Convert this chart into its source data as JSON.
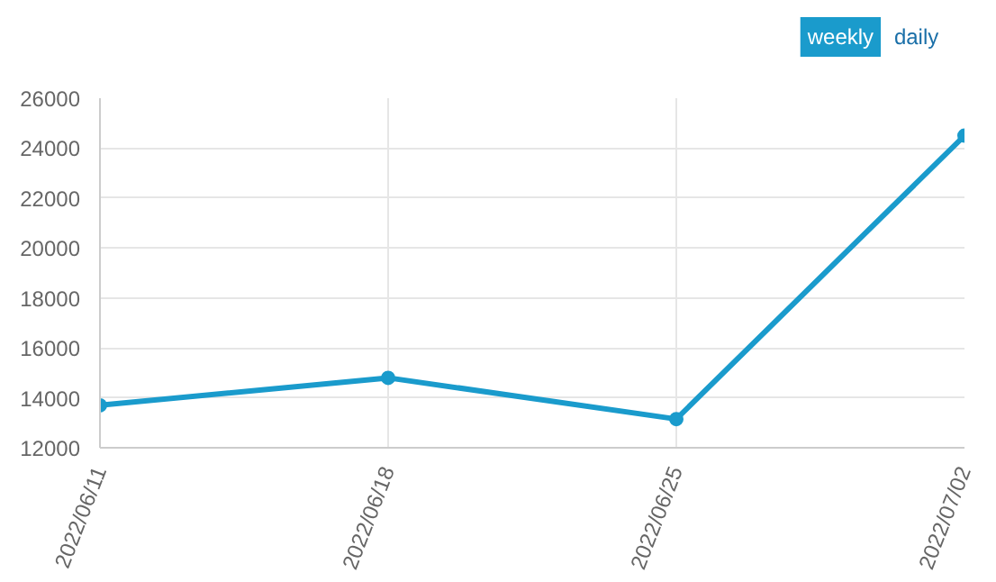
{
  "chart_data": {
    "type": "line",
    "categories": [
      "2022/06/11",
      "2022/06/18",
      "2022/06/25",
      "2022/07/02"
    ],
    "series": [
      {
        "color": "#1a9bcc",
        "values": [
          13700,
          14800,
          13150,
          24500
        ]
      }
    ],
    "ylim": [
      12000,
      26000
    ],
    "yticks": [
      12000,
      14000,
      16000,
      18000,
      20000,
      22000,
      24000,
      26000
    ],
    "grid": true,
    "marker": "circle",
    "line_style": "solid",
    "annotations": [
      "weekly",
      "daily"
    ]
  }
}
